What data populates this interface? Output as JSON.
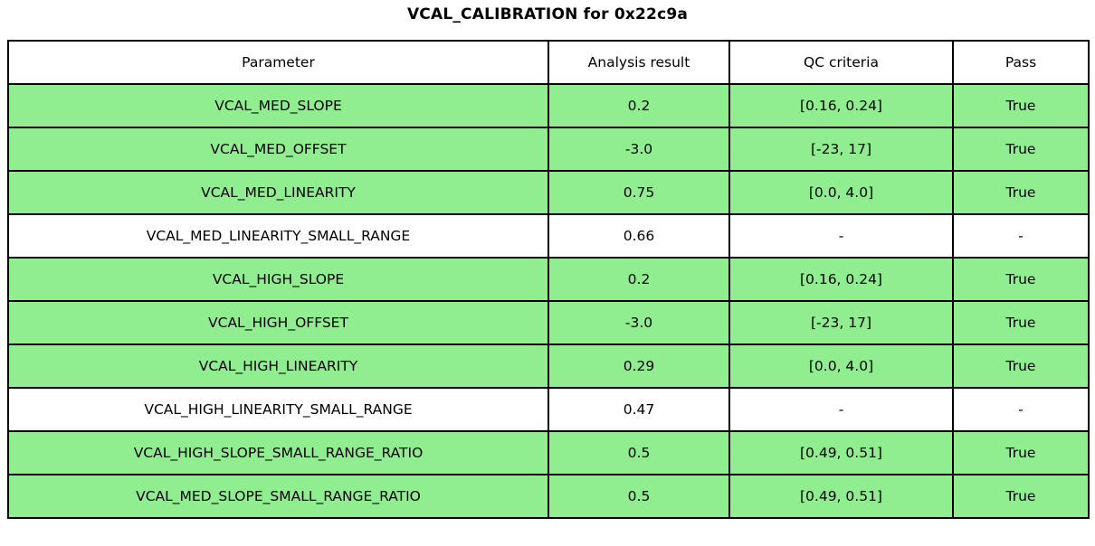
{
  "title": "VCAL_CALIBRATION for 0x22c9a",
  "colors": {
    "pass_green": "#90EE90",
    "neutral_white": "#ffffff",
    "border": "#000000"
  },
  "table": {
    "headers": {
      "parameter": "Parameter",
      "result": "Analysis result",
      "criteria": "QC criteria",
      "pass": "Pass"
    },
    "rows": [
      {
        "parameter": "VCAL_MED_SLOPE",
        "result": "0.2",
        "criteria": "[0.16, 0.24]",
        "pass": "True",
        "bg": "#90EE90"
      },
      {
        "parameter": "VCAL_MED_OFFSET",
        "result": "-3.0",
        "criteria": "[-23, 17]",
        "pass": "True",
        "bg": "#90EE90"
      },
      {
        "parameter": "VCAL_MED_LINEARITY",
        "result": "0.75",
        "criteria": "[0.0, 4.0]",
        "pass": "True",
        "bg": "#90EE90"
      },
      {
        "parameter": "VCAL_MED_LINEARITY_SMALL_RANGE",
        "result": "0.66",
        "criteria": "-",
        "pass": "-",
        "bg": "#ffffff"
      },
      {
        "parameter": "VCAL_HIGH_SLOPE",
        "result": "0.2",
        "criteria": "[0.16, 0.24]",
        "pass": "True",
        "bg": "#90EE90"
      },
      {
        "parameter": "VCAL_HIGH_OFFSET",
        "result": "-3.0",
        "criteria": "[-23, 17]",
        "pass": "True",
        "bg": "#90EE90"
      },
      {
        "parameter": "VCAL_HIGH_LINEARITY",
        "result": "0.29",
        "criteria": "[0.0, 4.0]",
        "pass": "True",
        "bg": "#90EE90"
      },
      {
        "parameter": "VCAL_HIGH_LINEARITY_SMALL_RANGE",
        "result": "0.47",
        "criteria": "-",
        "pass": "-",
        "bg": "#ffffff"
      },
      {
        "parameter": "VCAL_HIGH_SLOPE_SMALL_RANGE_RATIO",
        "result": "0.5",
        "criteria": "[0.49, 0.51]",
        "pass": "True",
        "bg": "#90EE90"
      },
      {
        "parameter": "VCAL_MED_SLOPE_SMALL_RANGE_RATIO",
        "result": "0.5",
        "criteria": "[0.49, 0.51]",
        "pass": "True",
        "bg": "#90EE90"
      }
    ]
  },
  "chart_data": {
    "type": "table",
    "title": "VCAL_CALIBRATION for 0x22c9a",
    "columns": [
      "Parameter",
      "Analysis result",
      "QC criteria",
      "Pass"
    ],
    "rows": [
      [
        "VCAL_MED_SLOPE",
        0.2,
        "[0.16, 0.24]",
        "True"
      ],
      [
        "VCAL_MED_OFFSET",
        -3.0,
        "[-23, 17]",
        "True"
      ],
      [
        "VCAL_MED_LINEARITY",
        0.75,
        "[0.0, 4.0]",
        "True"
      ],
      [
        "VCAL_MED_LINEARITY_SMALL_RANGE",
        0.66,
        "-",
        "-"
      ],
      [
        "VCAL_HIGH_SLOPE",
        0.2,
        "[0.16, 0.24]",
        "True"
      ],
      [
        "VCAL_HIGH_OFFSET",
        -3.0,
        "[-23, 17]",
        "True"
      ],
      [
        "VCAL_HIGH_LINEARITY",
        0.29,
        "[0.0, 4.0]",
        "True"
      ],
      [
        "VCAL_HIGH_LINEARITY_SMALL_RANGE",
        0.47,
        "-",
        "-"
      ],
      [
        "VCAL_HIGH_SLOPE_SMALL_RANGE_RATIO",
        0.5,
        "[0.49, 0.51]",
        "True"
      ],
      [
        "VCAL_MED_SLOPE_SMALL_RANGE_RATIO",
        0.5,
        "[0.49, 0.51]",
        "True"
      ]
    ],
    "row_highlight_color_passing": "#90EE90",
    "row_highlight_color_neutral": "#ffffff",
    "layout": "header row on top, 10 data rows, black grid lines, all cells center-aligned"
  }
}
